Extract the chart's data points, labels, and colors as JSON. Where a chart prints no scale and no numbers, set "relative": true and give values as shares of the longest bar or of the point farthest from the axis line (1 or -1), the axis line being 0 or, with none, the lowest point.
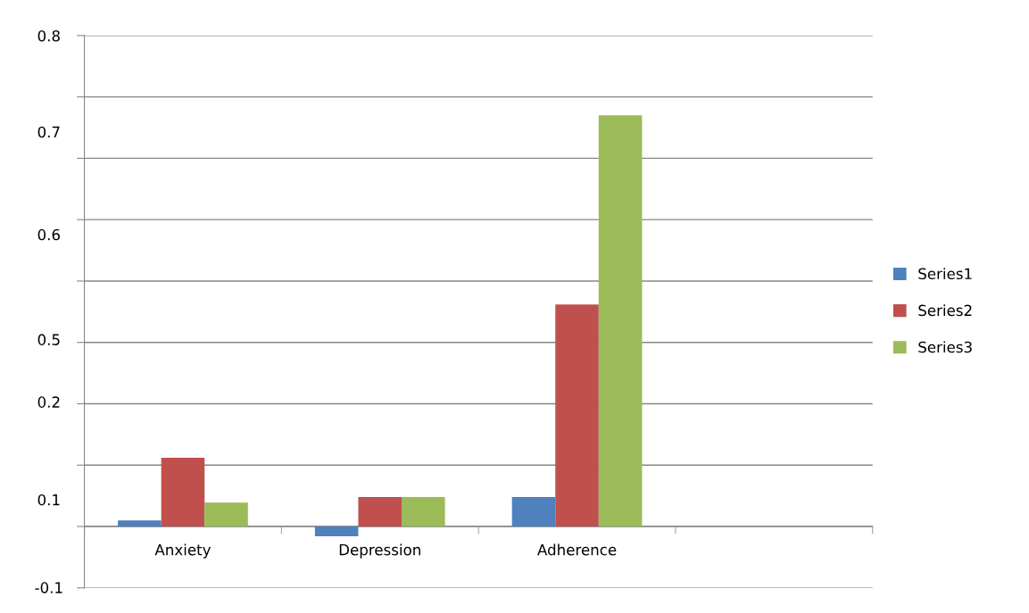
{
  "chart_data": {
    "type": "bar",
    "relative": true,
    "categories": [
      "Anxiety",
      "Depression",
      "Adherence",
      null
    ],
    "series": [
      {
        "name": "Series1",
        "color": "#4f81bd",
        "values": [
          0.015,
          -0.024,
          0.072,
          null
        ]
      },
      {
        "name": "Series2",
        "color": "#c0504d",
        "values": [
          0.167,
          0.072,
          0.54,
          null
        ]
      },
      {
        "name": "Series3",
        "color": "#9bbb59",
        "values": [
          0.058,
          0.072,
          1,
          null
        ]
      }
    ],
    "annotations": [
      "0.8",
      "0.7",
      "0.6",
      "0.5",
      "0.2",
      "0.1",
      "-0.1"
    ],
    "grid": "y",
    "legend": "right"
  }
}
